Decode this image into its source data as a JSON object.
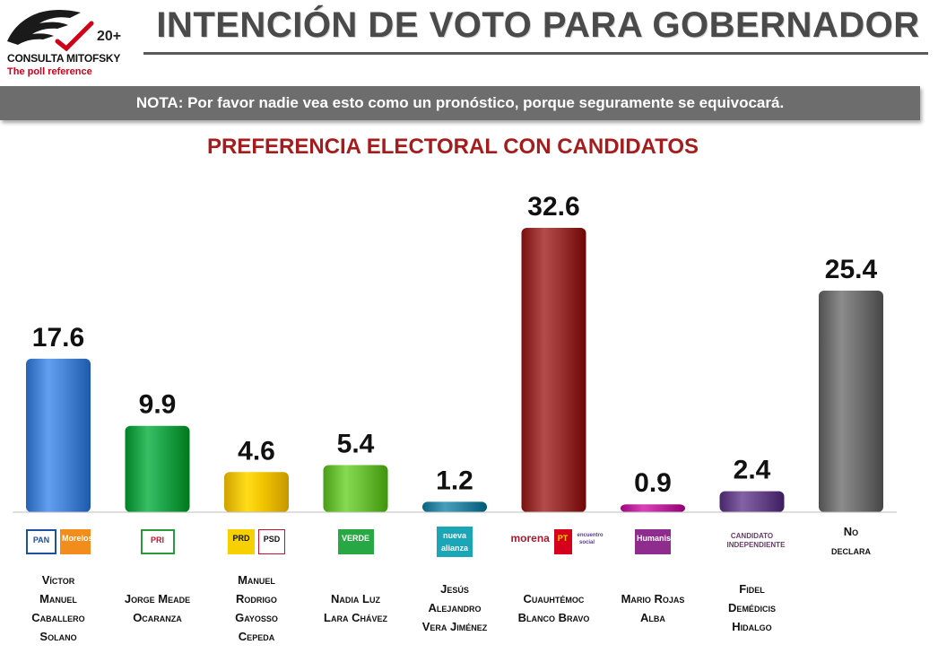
{
  "header": {
    "logo_text": "CONSULTA MITOFSKY",
    "logo_tagline": "The poll reference",
    "logo_anniversary": "20+",
    "title": "INTENCIÓN DE VOTO PARA GOBERNADOR"
  },
  "note": "NOTA: Por favor nadie vea esto como un pronóstico, porque seguramente se equivocará.",
  "chart_data": {
    "type": "bar",
    "title": "PREFERENCIA ELECTORAL CON CANDIDATOS",
    "categories": [
      "Víctor Manuel Caballero Solano",
      "Jorge Meade Ocaranza",
      "Manuel Rodrigo Gayosso Cepeda",
      "Nadia Luz Lara Chávez",
      "Jesús Alejandro Vera Jiménez",
      "Cuauhtémoc Blanco Bravo",
      "Mario Rojas Alba",
      "Fidel Demédicis Hidalgo",
      "No declara"
    ],
    "values": [
      17.6,
      9.9,
      4.6,
      5.4,
      1.2,
      32.6,
      0.9,
      2.4,
      25.4
    ],
    "value_labels": [
      "17.6",
      "9.9",
      "4.6",
      "5.4",
      "1.2",
      "32.6",
      "0.9",
      "2.4",
      "25.4"
    ],
    "colors": [
      "#4a86d8",
      "#1fa54a",
      "#f2c400",
      "#6cc138",
      "#2d86a4",
      "#9b3333",
      "#c02aa0",
      "#6a4a8c",
      "#737373"
    ],
    "parties": [
      [
        "PAN",
        "Morelos"
      ],
      [
        "PRI"
      ],
      [
        "PRD",
        "PSD"
      ],
      [
        "VERDE"
      ],
      [
        "nueva alianza"
      ],
      [
        "morena",
        "PT",
        "encuentro social"
      ],
      [
        "Humanista"
      ],
      [
        "CANDIDATO INDEPENDIENTE"
      ],
      []
    ],
    "candidate_lines": [
      [
        "Víctor",
        "Manuel",
        "Caballero",
        "Solano"
      ],
      [
        "Jorge Meade",
        "Ocaranza"
      ],
      [
        "Manuel",
        "Rodrigo",
        "Gayosso",
        "Cepeda"
      ],
      [
        "Nadia Luz",
        "Lara Chávez"
      ],
      [
        "Jesús",
        "Alejandro",
        "Vera Jiménez"
      ],
      [
        "Cuauhtémoc",
        "Blanco Bravo"
      ],
      [
        "Mario Rojas",
        "Alba"
      ],
      [
        "Fidel",
        "Demédicis",
        "Hidalgo"
      ],
      [
        "No",
        "declara"
      ]
    ],
    "ylim": [
      0,
      32.6
    ],
    "grid": false,
    "legend": "none"
  }
}
